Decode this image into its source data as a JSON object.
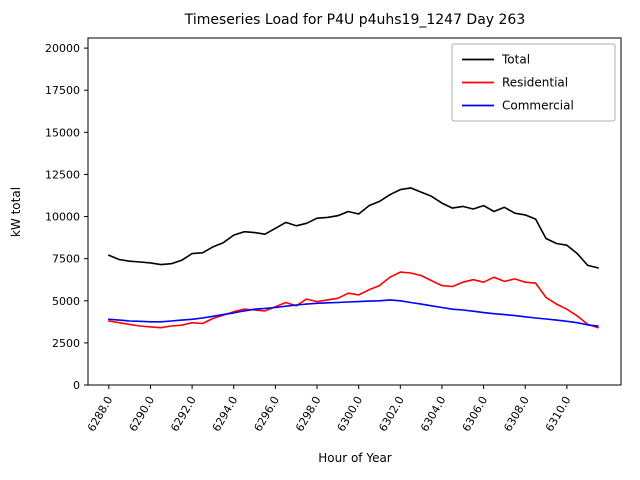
{
  "chart_data": {
    "type": "line",
    "title": "Timeseries Load for P4U p4uhs19_1247  Day 263",
    "xlabel": "Hour of Year",
    "ylabel": "kW total",
    "xlim": [
      6287.0,
      6312.6
    ],
    "ylim": [
      0,
      20600
    ],
    "grid": false,
    "legend_position": "upper right",
    "xticks": [
      6288,
      6290,
      6292,
      6294,
      6296,
      6298,
      6300,
      6302,
      6304,
      6306,
      6308,
      6310
    ],
    "xtick_labels": [
      "6288.0",
      "6290.0",
      "6292.0",
      "6294.0",
      "6296.0",
      "6298.0",
      "6300.0",
      "6302.0",
      "6304.0",
      "6306.0",
      "6308.0",
      "6310.0"
    ],
    "yticks": [
      0,
      2500,
      5000,
      7500,
      10000,
      12500,
      15000,
      17500,
      20000
    ],
    "ytick_labels": [
      "0",
      "2500",
      "5000",
      "7500",
      "10000",
      "12500",
      "15000",
      "17500",
      "20000"
    ],
    "x": [
      6288,
      6288.5,
      6289,
      6289.5,
      6290,
      6290.5,
      6291,
      6291.5,
      6292,
      6292.5,
      6293,
      6293.5,
      6294,
      6294.5,
      6295,
      6295.5,
      6296,
      6296.5,
      6297,
      6297.5,
      6298,
      6298.5,
      6299,
      6299.5,
      6300,
      6300.5,
      6301,
      6301.5,
      6302,
      6302.5,
      6303,
      6303.5,
      6304,
      6304.5,
      6305,
      6305.5,
      6306,
      6306.5,
      6307,
      6307.5,
      6308,
      6308.5,
      6309,
      6309.5,
      6310,
      6310.5,
      6311,
      6311.5
    ],
    "series": [
      {
        "name": "Total",
        "color": "#000000",
        "values": [
          7700,
          7450,
          7350,
          7300,
          7250,
          7150,
          7200,
          7400,
          7800,
          7850,
          8200,
          8450,
          8900,
          9100,
          9050,
          8950,
          9300,
          9650,
          9450,
          9600,
          9900,
          9950,
          10050,
          10300,
          10150,
          10650,
          10900,
          11300,
          11600,
          11700,
          11450,
          11200,
          10800,
          10500,
          10600,
          10450,
          10650,
          10300,
          10550,
          10200,
          10100,
          9850,
          8700,
          8400,
          8300,
          7800,
          7100,
          6950
        ]
      },
      {
        "name": "Residential",
        "color": "#ff0000",
        "values": [
          3800,
          3700,
          3600,
          3500,
          3450,
          3400,
          3500,
          3550,
          3700,
          3650,
          3950,
          4150,
          4350,
          4500,
          4450,
          4400,
          4650,
          4900,
          4700,
          5100,
          4950,
          5050,
          5150,
          5450,
          5350,
          5650,
          5900,
          6400,
          6700,
          6650,
          6500,
          6200,
          5900,
          5850,
          6100,
          6250,
          6100,
          6400,
          6150,
          6300,
          6100,
          6050,
          5200,
          4800,
          4500,
          4100,
          3600,
          3400
        ]
      },
      {
        "name": "Commercial",
        "color": "#0000ff",
        "values": [
          3900,
          3850,
          3800,
          3780,
          3750,
          3750,
          3800,
          3850,
          3900,
          3980,
          4080,
          4180,
          4280,
          4400,
          4500,
          4550,
          4600,
          4680,
          4750,
          4800,
          4850,
          4880,
          4900,
          4930,
          4950,
          4980,
          5000,
          5050,
          5000,
          4900,
          4800,
          4700,
          4600,
          4500,
          4450,
          4380,
          4300,
          4230,
          4180,
          4120,
          4050,
          3980,
          3920,
          3850,
          3780,
          3700,
          3570,
          3500
        ]
      }
    ]
  }
}
